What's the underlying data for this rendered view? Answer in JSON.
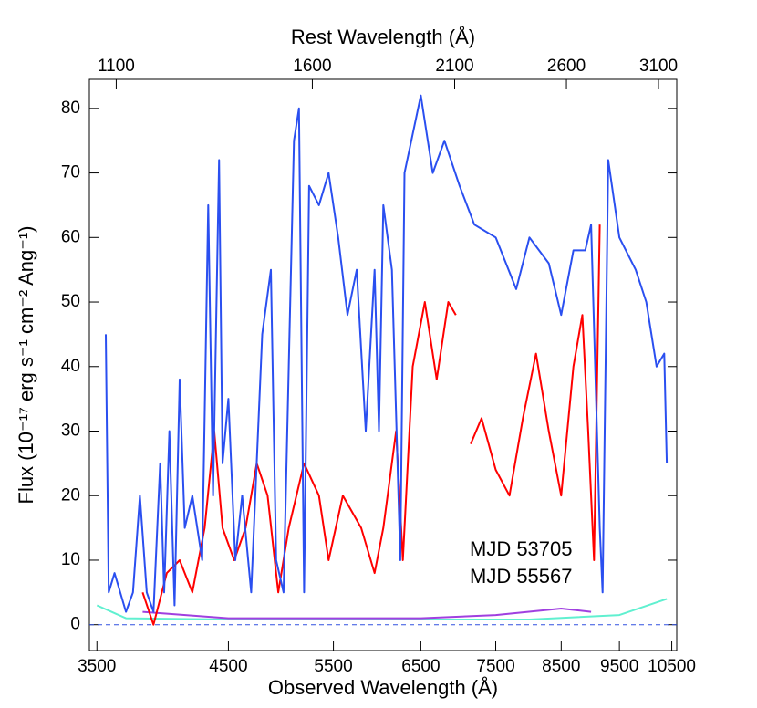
{
  "chart_data": {
    "type": "line",
    "x_label": "Observed Wavelength (Å)",
    "x2_label": "Rest Wavelength (Å)",
    "y_label": "Flux (10⁻¹⁷ erg s⁻¹ cm⁻² Ang⁻¹)",
    "xscale": "log",
    "xlim": [
      3450,
      10600
    ],
    "xticks": [
      3500,
      4500,
      5500,
      6500,
      7500,
      8500,
      9500,
      10500
    ],
    "x2lim": [
      1045,
      3210
    ],
    "x2ticks": [
      1100,
      1600,
      2100,
      2600,
      3100
    ],
    "ylim": [
      -4,
      84.5
    ],
    "yticks": [
      0,
      10,
      20,
      30,
      40,
      50,
      60,
      70,
      80
    ],
    "reference_line": 0,
    "reference_color": "#3050e0",
    "legend": "lower right",
    "series": [
      {
        "name": "MJD 53705",
        "color": "#ff0000",
        "x": [
          3820,
          3900,
          4000,
          4100,
          4200,
          4300,
          4380,
          4450,
          4550,
          4650,
          4750,
          4850,
          4950,
          5050,
          5200,
          5350,
          5450,
          5600,
          5800,
          5950,
          6050,
          6200,
          6280,
          6400,
          6550,
          6700,
          6850,
          6950,
          7050,
          7150,
          7300,
          7500,
          7700,
          7900,
          8100,
          8300,
          8500,
          8700,
          8850,
          8950,
          9050,
          9150
        ],
        "values": [
          5,
          0,
          8,
          10,
          5,
          15,
          30,
          15,
          10,
          15,
          25,
          20,
          5,
          15,
          25,
          20,
          10,
          20,
          15,
          8,
          15,
          30,
          10,
          40,
          50,
          38,
          50,
          48,
          null,
          28,
          32,
          24,
          20,
          32,
          42,
          30,
          20,
          40,
          48,
          30,
          10,
          62
        ]
      },
      {
        "name": "MJD 55567",
        "color": "#2a4ff0",
        "x": [
          3560,
          3580,
          3620,
          3700,
          3750,
          3800,
          3850,
          3900,
          3950,
          3980,
          4020,
          4060,
          4100,
          4140,
          4200,
          4280,
          4330,
          4370,
          4420,
          4450,
          4500,
          4560,
          4620,
          4700,
          4800,
          4880,
          4930,
          5000,
          5050,
          5100,
          5150,
          5200,
          5250,
          5350,
          5450,
          5550,
          5650,
          5750,
          5850,
          5950,
          6000,
          6050,
          6150,
          6250,
          6300,
          6500,
          6650,
          6800,
          7000,
          7200,
          7500,
          7800,
          8000,
          8300,
          8500,
          8700,
          8900,
          9000,
          9150,
          9200,
          9300,
          9500,
          9800,
          10000,
          10200,
          10350,
          10400
        ],
        "values": [
          45,
          5,
          8,
          2,
          5,
          20,
          5,
          2,
          25,
          5,
          30,
          3,
          38,
          15,
          20,
          10,
          65,
          20,
          72,
          25,
          35,
          10,
          20,
          5,
          45,
          55,
          10,
          5,
          40,
          75,
          80,
          5,
          68,
          65,
          70,
          60,
          48,
          55,
          30,
          55,
          30,
          65,
          55,
          10,
          70,
          82,
          70,
          75,
          68,
          62,
          60,
          52,
          60,
          56,
          48,
          58,
          58,
          62,
          15,
          5,
          72,
          60,
          55,
          50,
          40,
          42,
          25
        ]
      },
      {
        "color": "#a040e0",
        "x": [
          3820,
          4500,
          5500,
          6500,
          7500,
          8500,
          9000
        ],
        "values": [
          2,
          1,
          1,
          1,
          1.5,
          2.5,
          2
        ]
      },
      {
        "color": "#60f0d0",
        "x": [
          3500,
          3700,
          4500,
          6000,
          8000,
          9500,
          10400
        ],
        "values": [
          3,
          1,
          0.8,
          0.8,
          0.8,
          1.5,
          4
        ]
      }
    ]
  }
}
